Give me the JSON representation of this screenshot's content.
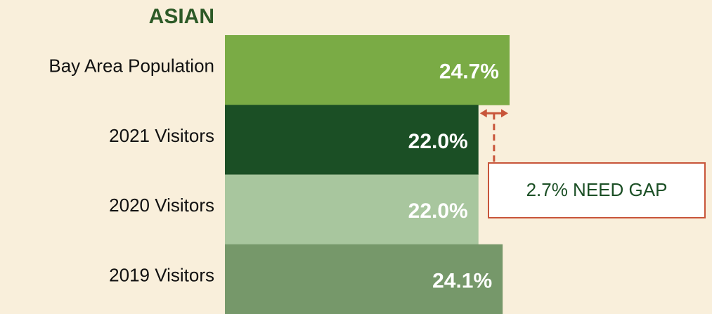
{
  "chart_data": {
    "type": "bar",
    "orientation": "horizontal",
    "title": "ASIAN",
    "categories": [
      "Bay Area Population",
      "2021 Visitors",
      "2020 Visitors",
      "2019 Visitors"
    ],
    "values": [
      24.7,
      22.0,
      22.0,
      24.1
    ],
    "value_labels": [
      "24.7%",
      "22.0%",
      "22.0%",
      "24.1%"
    ],
    "colors": [
      "#7aab45",
      "#1b4f25",
      "#a8c69e",
      "#76986a"
    ],
    "annotation": "2.7% NEED GAP"
  }
}
